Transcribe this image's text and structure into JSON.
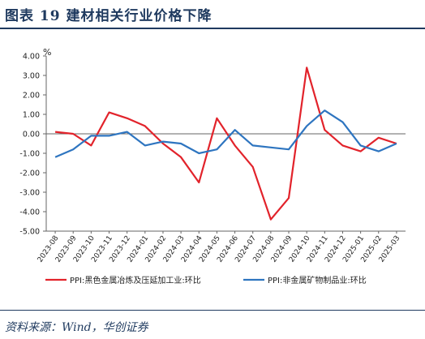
{
  "header": {
    "title": "图表 19  建材相关行业价格下降"
  },
  "source": "资料来源：Wind，华创证券",
  "chart_data": {
    "type": "line",
    "ylabel": "%",
    "ylim": [
      -5,
      4
    ],
    "yticks": [
      "4.00",
      "3.00",
      "2.00",
      "1.00",
      "0.00",
      "-1.00",
      "-2.00",
      "-3.00",
      "-4.00",
      "-5.00"
    ],
    "grid": false,
    "legend_position": "bottom",
    "x": [
      "2023-08",
      "2023-09",
      "2023-10",
      "2023-11",
      "2023-12",
      "2024-01",
      "2024-02",
      "2024-03",
      "2024-04",
      "2024-05",
      "2024-06",
      "2024-07",
      "2024-08",
      "2024-09",
      "2024-10",
      "2024-11",
      "2024-12",
      "2025-01",
      "2025-02",
      "2025-03"
    ],
    "series": [
      {
        "name": "PPI:黑色金属冶炼及压延加工业:环比",
        "color": "#e2232b",
        "values": [
          0.1,
          0.0,
          -0.6,
          1.1,
          0.8,
          0.4,
          -0.5,
          -1.2,
          -2.5,
          0.8,
          -0.6,
          -1.7,
          -4.4,
          -3.3,
          3.4,
          0.2,
          -0.6,
          -0.9,
          -0.2,
          -0.5
        ]
      },
      {
        "name": "PPI:非金属矿物制品业:环比",
        "color": "#2e75c0",
        "values": [
          -1.2,
          -0.8,
          -0.1,
          -0.1,
          0.1,
          -0.6,
          -0.4,
          -0.5,
          -1.0,
          -0.8,
          0.2,
          -0.6,
          -0.7,
          -0.8,
          0.4,
          1.2,
          0.6,
          -0.6,
          -0.9,
          -0.5
        ]
      }
    ]
  }
}
